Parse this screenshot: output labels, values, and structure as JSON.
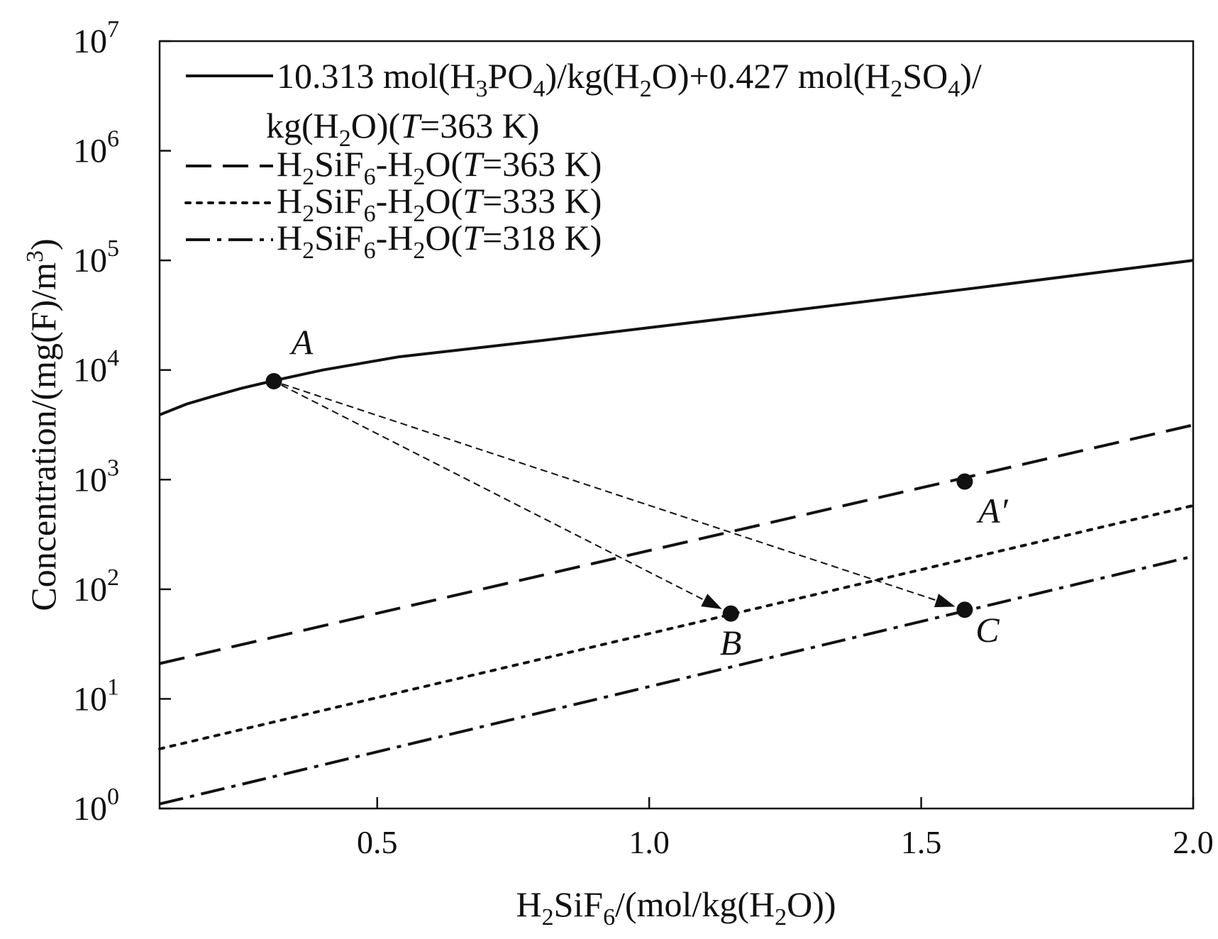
{
  "chart_data": {
    "type": "line",
    "xlabel": "H2SiF6/(mol/kg(H2O))",
    "ylabel": "Concentration/(mg(F)/m3)",
    "xlim": [
      0.1,
      2.0
    ],
    "ylim": [
      1,
      10000000
    ],
    "yscale": "log",
    "xticks": [
      0.5,
      1.0,
      1.5,
      2.0
    ],
    "xtick_labels": [
      "0.5",
      "1.0",
      "1.5",
      "2.0"
    ],
    "ytick_exponents": [
      "0",
      "1",
      "2",
      "3",
      "4",
      "5",
      "6",
      "7"
    ],
    "legend_position": "top-left",
    "series": [
      {
        "name": "10.313 mol(H3PO4)/kg(H2O)+0.427 mol(H2SO4)/kg(H2O)(T=363 K)",
        "style": "solid",
        "x": [
          0.1,
          0.15,
          0.2,
          0.25,
          0.31,
          0.4,
          0.54,
          0.8,
          1.2,
          1.6,
          2.0
        ],
        "y": [
          3900,
          4900,
          5800,
          6800,
          8000,
          10000,
          13200,
          18500,
          32000,
          56000,
          100000
        ]
      },
      {
        "name": "H2SiF6-H2O(T=363 K)",
        "style": "dashed",
        "x": [
          0.1,
          2.0
        ],
        "y": [
          21,
          3150
        ]
      },
      {
        "name": "H2SiF6-H2O(T=333 K)",
        "style": "dotted",
        "x": [
          0.1,
          2.0
        ],
        "y": [
          3.5,
          580
        ]
      },
      {
        "name": "H2SiF6-H2O(T=318 K)",
        "style": "dashdot",
        "x": [
          0.1,
          2.0
        ],
        "y": [
          1.1,
          200
        ]
      }
    ],
    "points": [
      {
        "label": "A",
        "x": 0.31,
        "y": 7900
      },
      {
        "label": "A′",
        "x": 1.58,
        "y": 960
      },
      {
        "label": "B",
        "x": 1.15,
        "y": 60
      },
      {
        "label": "C",
        "x": 1.58,
        "y": 65
      }
    ],
    "arrows": [
      {
        "from": "A",
        "to": "B",
        "style": "dashed"
      },
      {
        "from": "A",
        "to": "C",
        "style": "dashed"
      }
    ],
    "colors": {
      "ink": "#111111",
      "background": "#ffffff"
    }
  }
}
